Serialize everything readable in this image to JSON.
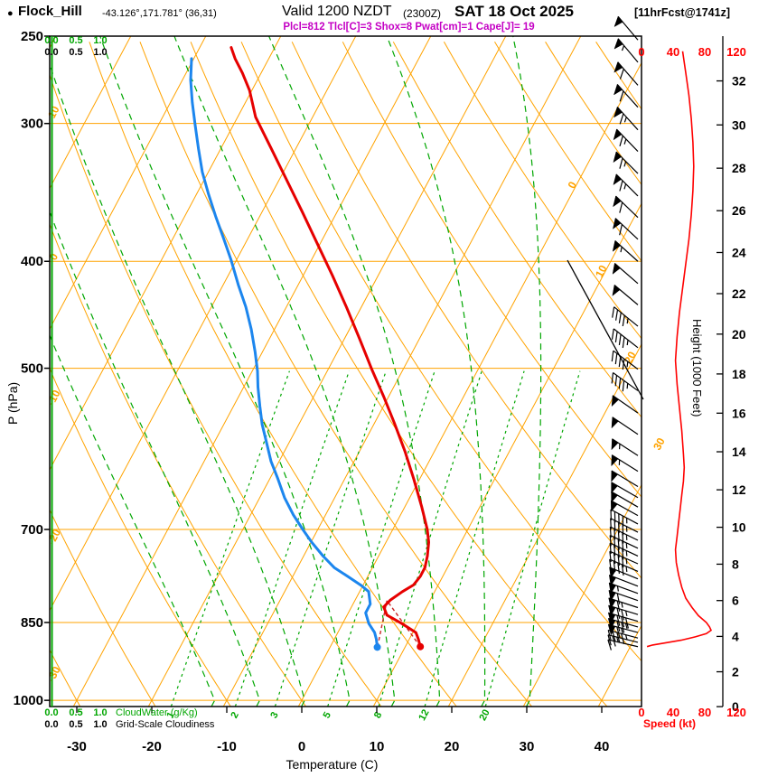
{
  "header": {
    "bullet": "●",
    "station": "Flock_Hill",
    "coords": "-43.126°,171.781° (36,31)",
    "valid_label": "Valid 1200 NZDT",
    "valid_utc": "(2300Z)",
    "valid_date": "SAT 18 Oct 2025",
    "fcst_tag": "[11hrFcst@1741z]",
    "params_line": "Plcl=812 Tlcl[C]=3 Shox=8 Pwat[cm]=1 Cape[J]= 19"
  },
  "axes": {
    "pressure_label": "P (hPa)",
    "pressure_ticks": [
      250,
      300,
      400,
      500,
      700,
      850,
      1000
    ],
    "temp_label": "Temperature (C)",
    "temp_ticks": [
      -30,
      -20,
      -10,
      0,
      10,
      20,
      30,
      40
    ],
    "height_label": "Height (1000 Feet)",
    "height_ticks": [
      0,
      2,
      4,
      6,
      8,
      10,
      12,
      14,
      16,
      18,
      20,
      22,
      24,
      26,
      28,
      30,
      32
    ],
    "speed_label": "Speed (kt)",
    "speed_ticks": [
      0,
      40,
      80,
      120
    ],
    "cloudwater_scale": [
      "0.0",
      "0.5",
      "1.0"
    ],
    "cloudwater_label": "CloudWater (g/Kg)",
    "cloudiness_label": "Grid-Scale Cloudiness",
    "mixing_ratio_labels": [
      1,
      2,
      3,
      5,
      8,
      12,
      20
    ],
    "dry_adiabat_labels": [
      10,
      0,
      -10,
      -20,
      -30
    ],
    "isotherm_labels": [
      0,
      10,
      20,
      30
    ]
  },
  "colors": {
    "orange": "#FFA300",
    "green": "#00A600",
    "red": "#E60000",
    "blue": "#1C86EE",
    "magenta": "#C400C4",
    "speed_red": "#FF0000",
    "parcel": "#C82828",
    "black": "#000000"
  },
  "chart_data": {
    "type": "line",
    "chart_kind": "skew-T log-p atmospheric sounding",
    "pressure_axis_hpa": {
      "top": 250,
      "bottom": 1013,
      "ticks": [
        250,
        300,
        400,
        500,
        700,
        850,
        1000
      ]
    },
    "temp_axis_c": {
      "ticks": [
        -30,
        -20,
        -10,
        0,
        10,
        20,
        30,
        40
      ]
    },
    "height_axis_kft": [
      0,
      2,
      4,
      6,
      8,
      10,
      12,
      14,
      16,
      18,
      20,
      22,
      24,
      26,
      28,
      30,
      32
    ],
    "speed_axis_kt": [
      0,
      40,
      80,
      120
    ],
    "indices": {
      "Plcl": 812,
      "Tlcl_C": 3,
      "Shox": 8,
      "Pwat_cm": 1,
      "Cape_J": 19
    },
    "parcel": {
      "p_surface": 894,
      "t_surface": 12.0,
      "td_surface": 6.3,
      "p_lcl": 812
    },
    "mixing_ratio_lines_gkg": [
      1,
      2,
      3,
      5,
      8,
      12,
      20
    ],
    "dry_adiabat_labels_c": [
      10,
      0,
      -10,
      -20,
      -30
    ],
    "isotherm_labels_c": [
      0,
      10,
      20,
      30
    ],
    "moist_adiabat_starts_c": [
      -12,
      -6,
      0,
      6,
      12,
      18,
      24,
      30
    ],
    "series": [
      {
        "name": "temperature",
        "units": [
          "hPa",
          "C"
        ],
        "points": [
          [
            894,
            12.0
          ],
          [
            880,
            11.2
          ],
          [
            868,
            10.4
          ],
          [
            852,
            7.9
          ],
          [
            837,
            5.3
          ],
          [
            823,
            4.3
          ],
          [
            811,
            4.7
          ],
          [
            797,
            5.7
          ],
          [
            786,
            6.7
          ],
          [
            772,
            7.0
          ],
          [
            758,
            7.0
          ],
          [
            740,
            6.5
          ],
          [
            719,
            5.7
          ],
          [
            700,
            4.6
          ],
          [
            667,
            2.2
          ],
          [
            630,
            -0.8
          ],
          [
            595,
            -3.9
          ],
          [
            562,
            -7.2
          ],
          [
            531,
            -10.6
          ],
          [
            501,
            -14.2
          ],
          [
            470,
            -18.0
          ],
          [
            440,
            -22.0
          ],
          [
            412,
            -26.1
          ],
          [
            386,
            -30.3
          ],
          [
            361,
            -34.6
          ],
          [
            338,
            -38.9
          ],
          [
            316,
            -43.3
          ],
          [
            296,
            -47.6
          ],
          [
            280,
            -50.3
          ],
          [
            270,
            -52.5
          ],
          [
            262,
            -54.5
          ],
          [
            256,
            -55.8
          ]
        ]
      },
      {
        "name": "dewpoint",
        "units": [
          "hPa",
          "C"
        ],
        "points": [
          [
            895,
            6.3
          ],
          [
            880,
            5.6
          ],
          [
            868,
            4.9
          ],
          [
            852,
            3.5
          ],
          [
            833,
            2.3
          ],
          [
            818,
            2.3
          ],
          [
            797,
            1.2
          ],
          [
            787,
            -0.2
          ],
          [
            772,
            -2.7
          ],
          [
            758,
            -5.1
          ],
          [
            740,
            -7.4
          ],
          [
            719,
            -9.9
          ],
          [
            700,
            -12.0
          ],
          [
            679,
            -14.3
          ],
          [
            655,
            -16.7
          ],
          [
            630,
            -18.9
          ],
          [
            607,
            -21.1
          ],
          [
            584,
            -23.0
          ],
          [
            562,
            -24.9
          ],
          [
            541,
            -26.5
          ],
          [
            520,
            -28.1
          ],
          [
            503,
            -29.3
          ],
          [
            483,
            -31.0
          ],
          [
            461,
            -33.1
          ],
          [
            440,
            -35.4
          ],
          [
            420,
            -38.0
          ],
          [
            399,
            -40.7
          ],
          [
            381,
            -43.3
          ],
          [
            364,
            -45.9
          ],
          [
            347,
            -48.5
          ],
          [
            332,
            -50.8
          ],
          [
            316,
            -53.0
          ],
          [
            301,
            -55.1
          ],
          [
            287,
            -57.1
          ],
          [
            274,
            -58.9
          ],
          [
            262,
            -60.3
          ]
        ]
      },
      {
        "name": "wind_speed",
        "units": [
          "hPa",
          "kt"
        ],
        "points": [
          [
            258,
            52
          ],
          [
            270,
            56
          ],
          [
            283,
            60
          ],
          [
            297,
            63
          ],
          [
            312,
            65
          ],
          [
            328,
            66
          ],
          [
            345,
            65
          ],
          [
            363,
            63
          ],
          [
            382,
            60
          ],
          [
            402,
            56
          ],
          [
            423,
            52
          ],
          [
            445,
            48
          ],
          [
            468,
            45
          ],
          [
            492,
            43
          ],
          [
            517,
            45
          ],
          [
            543,
            48
          ],
          [
            570,
            51
          ],
          [
            598,
            53
          ],
          [
            615,
            54
          ],
          [
            633,
            53
          ],
          [
            651,
            51
          ],
          [
            670,
            49
          ],
          [
            690,
            47
          ],
          [
            710,
            45
          ],
          [
            730,
            43
          ],
          [
            750,
            44
          ],
          [
            770,
            47
          ],
          [
            790,
            51
          ],
          [
            808,
            56
          ],
          [
            824,
            64
          ],
          [
            838,
            72
          ],
          [
            850,
            82
          ],
          [
            858,
            86
          ],
          [
            864,
            88
          ],
          [
            870,
            82
          ],
          [
            876,
            68
          ],
          [
            882,
            50
          ],
          [
            887,
            30
          ],
          [
            891,
            14
          ],
          [
            894,
            7
          ]
        ]
      }
    ],
    "wind_barbs": [
      [
        252,
        320,
        50
      ],
      [
        264,
        320,
        55
      ],
      [
        277,
        319,
        60
      ],
      [
        290,
        318,
        60
      ],
      [
        304,
        318,
        65
      ],
      [
        318,
        316,
        65
      ],
      [
        333,
        315,
        65
      ],
      [
        349,
        315,
        65
      ],
      [
        365,
        314,
        60
      ],
      [
        382,
        313,
        60
      ],
      [
        400,
        312,
        55
      ],
      [
        419,
        311,
        50
      ],
      [
        438,
        310,
        50
      ],
      [
        458,
        309,
        45
      ],
      [
        479,
        308,
        45
      ],
      [
        501,
        307,
        45
      ],
      [
        524,
        306,
        45
      ],
      [
        549,
        305,
        50
      ],
      [
        574,
        304,
        50
      ],
      [
        600,
        303,
        55
      ],
      [
        620,
        302,
        55
      ],
      [
        640,
        301,
        50
      ],
      [
        655,
        300,
        50
      ],
      [
        668,
        300,
        50
      ],
      [
        680,
        299,
        50
      ],
      [
        692,
        298,
        45
      ],
      [
        704,
        297,
        45
      ],
      [
        716,
        296,
        45
      ],
      [
        728,
        295,
        45
      ],
      [
        740,
        295,
        45
      ],
      [
        752,
        294,
        45
      ],
      [
        764,
        293,
        45
      ],
      [
        776,
        292,
        50
      ],
      [
        788,
        291,
        50
      ],
      [
        800,
        290,
        55
      ],
      [
        812,
        289,
        60
      ],
      [
        824,
        288,
        65
      ],
      [
        836,
        287,
        75
      ],
      [
        848,
        286,
        80
      ],
      [
        858,
        286,
        75
      ],
      [
        868,
        285,
        65
      ],
      [
        878,
        285,
        45
      ],
      [
        886,
        284,
        25
      ],
      [
        894,
        283,
        10
      ]
    ]
  }
}
